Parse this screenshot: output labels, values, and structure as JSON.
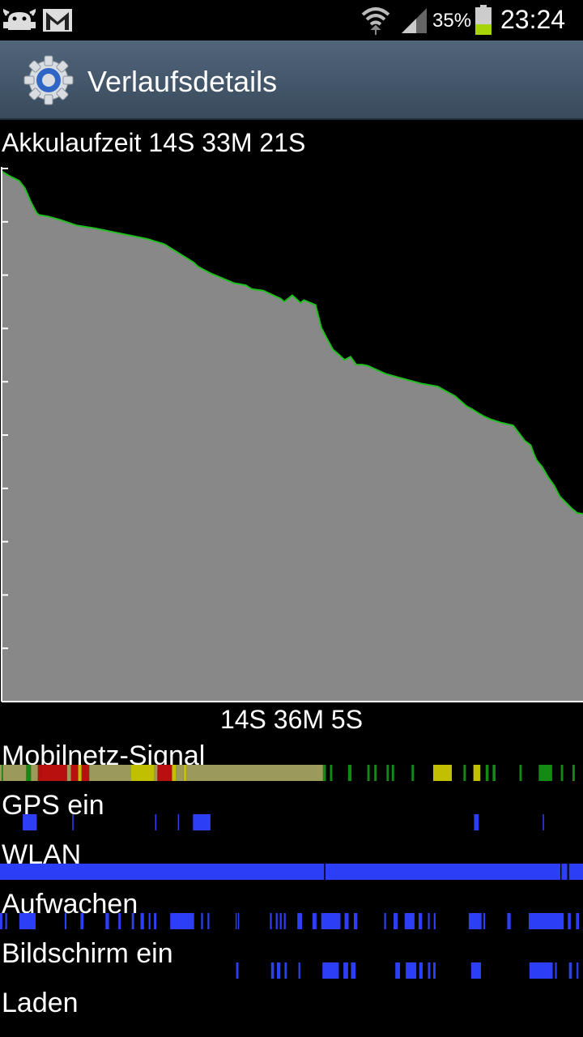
{
  "status_bar": {
    "battery_percent": "35%",
    "time": "23:24",
    "icons": [
      "android-debug-icon",
      "gmail-icon",
      "wifi-icon",
      "signal-icon",
      "battery-icon"
    ]
  },
  "action_bar": {
    "title": "Verlaufsdetails",
    "icon": "settings-gear-icon"
  },
  "summary": {
    "runtime_label": "Akkulaufzeit 14S 33M 21S",
    "duration_label": "14S 36M 5S"
  },
  "colors": {
    "graph_fill": "#888888",
    "graph_line": "#1fbf1f",
    "track_blue": "#2d3ff5",
    "signal_green": "#138a13",
    "signal_olive": "#9c9a5a",
    "signal_red": "#b80f0f",
    "signal_yellow": "#c0c000"
  },
  "chart_data": {
    "type": "area",
    "x": [
      0,
      1.2,
      3,
      4,
      5,
      6,
      6.4,
      8,
      10,
      13,
      16,
      20,
      25,
      28,
      33,
      33.8,
      35,
      36,
      40,
      42,
      43,
      45,
      48,
      48.6,
      50,
      51.4,
      52,
      54,
      55,
      56,
      57,
      58,
      59,
      60,
      61,
      62,
      63,
      64,
      66,
      68,
      70,
      72,
      75,
      78,
      80,
      81,
      82,
      83,
      84,
      86,
      88,
      90,
      91,
      91.5,
      92,
      93,
      94,
      95,
      96,
      97,
      98,
      99,
      100
    ],
    "y": [
      99.5,
      98.7,
      97.7,
      96.3,
      93.8,
      91.7,
      91.3,
      91,
      90.4,
      89.3,
      88.8,
      87.9,
      86.8,
      85.8,
      82.4,
      81.6,
      80.9,
      80.3,
      78.5,
      78.1,
      77.4,
      77.1,
      75.6,
      75,
      76.2,
      74.8,
      75.3,
      74.4,
      70.1,
      68,
      66,
      65.1,
      64.1,
      64.7,
      63.2,
      63.2,
      63,
      62.5,
      61.5,
      60.9,
      60.3,
      59.7,
      59.1,
      57.3,
      55.4,
      54.8,
      54.1,
      53.5,
      53,
      52.3,
      51.8,
      48.9,
      48.1,
      46.6,
      45.3,
      44,
      42.1,
      40.6,
      38.5,
      37.4,
      36.3,
      35.4,
      35.2
    ],
    "ylim": [
      0,
      100
    ],
    "xlabel": "",
    "ylabel": "",
    "grid": false
  },
  "tracks": [
    {
      "label": "Mobilnetz-Signal",
      "type": "signal",
      "segments": [
        {
          "s": 0,
          "e": 0.3,
          "c": "#9c9a5a"
        },
        {
          "s": 0.3,
          "e": 0.5,
          "c": "#138a13"
        },
        {
          "s": 0.5,
          "e": 4.5,
          "c": "#9c9a5a"
        },
        {
          "s": 4.5,
          "e": 5.3,
          "c": "#138a13"
        },
        {
          "s": 5.3,
          "e": 6.5,
          "c": "#9c9a5a"
        },
        {
          "s": 6.5,
          "e": 7,
          "c": "#b80f0f"
        },
        {
          "s": 7,
          "e": 11.5,
          "c": "#b80f0f"
        },
        {
          "s": 11.5,
          "e": 12.2,
          "c": "#9c9a5a"
        },
        {
          "s": 12.2,
          "e": 13.4,
          "c": "#b80f0f"
        },
        {
          "s": 13.4,
          "e": 14,
          "c": "#c0c000"
        },
        {
          "s": 14,
          "e": 15.3,
          "c": "#b80f0f"
        },
        {
          "s": 15.3,
          "e": 22.5,
          "c": "#9c9a5a"
        },
        {
          "s": 22.5,
          "e": 26.5,
          "c": "#c0c000"
        },
        {
          "s": 26.5,
          "e": 27,
          "c": "#9c9a5a"
        },
        {
          "s": 27,
          "e": 29.5,
          "c": "#b80f0f"
        },
        {
          "s": 29.5,
          "e": 30.2,
          "c": "#c0c000"
        },
        {
          "s": 30.2,
          "e": 31.5,
          "c": "#9c9a5a"
        },
        {
          "s": 31.5,
          "e": 32,
          "c": "#c0c000"
        },
        {
          "s": 32,
          "e": 55.4,
          "c": "#9c9a5a"
        },
        {
          "s": 55.4,
          "e": 55.9,
          "c": "#138a13"
        },
        {
          "s": 56.6,
          "e": 57,
          "c": "#138a13"
        },
        {
          "s": 59.7,
          "e": 60.3,
          "c": "#138a13"
        },
        {
          "s": 63,
          "e": 63.4,
          "c": "#138a13"
        },
        {
          "s": 64.2,
          "e": 64.6,
          "c": "#138a13"
        },
        {
          "s": 66.3,
          "e": 66.7,
          "c": "#138a13"
        },
        {
          "s": 67.2,
          "e": 67.6,
          "c": "#138a13"
        },
        {
          "s": 70.6,
          "e": 71,
          "c": "#138a13"
        },
        {
          "s": 74.3,
          "e": 77.5,
          "c": "#c0c000"
        },
        {
          "s": 79.5,
          "e": 79.9,
          "c": "#138a13"
        },
        {
          "s": 81.2,
          "e": 82.4,
          "c": "#c0c000"
        },
        {
          "s": 83.3,
          "e": 83.8,
          "c": "#138a13"
        },
        {
          "s": 84.5,
          "e": 85,
          "c": "#138a13"
        },
        {
          "s": 89.1,
          "e": 89.5,
          "c": "#138a13"
        },
        {
          "s": 92.4,
          "e": 94.7,
          "c": "#138a13"
        },
        {
          "s": 96.2,
          "e": 96.6,
          "c": "#138a13"
        },
        {
          "s": 98.2,
          "e": 98.6,
          "c": "#138a13"
        }
      ]
    },
    {
      "label": "GPS ein",
      "type": "bars",
      "segments": [
        {
          "s": 3.9,
          "e": 6.3
        },
        {
          "s": 12.4,
          "e": 12.6
        },
        {
          "s": 26.6,
          "e": 26.8
        },
        {
          "s": 30.5,
          "e": 30.7
        },
        {
          "s": 33.1,
          "e": 36.1
        },
        {
          "s": 81.3,
          "e": 82.1
        },
        {
          "s": 93.1,
          "e": 93.3
        }
      ]
    },
    {
      "label": "WLAN",
      "type": "bars",
      "segments": [
        {
          "s": 0,
          "e": 55.6
        },
        {
          "s": 55.8,
          "e": 96.1
        },
        {
          "s": 96.3,
          "e": 97.3
        },
        {
          "s": 97.6,
          "e": 100
        }
      ]
    },
    {
      "label": "Aufwachen",
      "type": "bars",
      "segments": [
        {
          "s": 0,
          "e": 0.4
        },
        {
          "s": 0.9,
          "e": 1.2
        },
        {
          "s": 3.3,
          "e": 6.1
        },
        {
          "s": 11.1,
          "e": 11.4
        },
        {
          "s": 13.8,
          "e": 14.3
        },
        {
          "s": 18.1,
          "e": 18.7
        },
        {
          "s": 20.3,
          "e": 20.7
        },
        {
          "s": 22.6,
          "e": 23
        },
        {
          "s": 24.1,
          "e": 24.7
        },
        {
          "s": 25.5,
          "e": 25.8
        },
        {
          "s": 26.4,
          "e": 26.8
        },
        {
          "s": 29.2,
          "e": 33.3
        },
        {
          "s": 34.5,
          "e": 34.8
        },
        {
          "s": 35.6,
          "e": 35.9
        },
        {
          "s": 40.4,
          "e": 40.6
        },
        {
          "s": 40.8,
          "e": 41
        },
        {
          "s": 46.3,
          "e": 46.6
        },
        {
          "s": 47.3,
          "e": 47.6
        },
        {
          "s": 48,
          "e": 48.3
        },
        {
          "s": 48.7,
          "e": 49
        },
        {
          "s": 51,
          "e": 51.8
        },
        {
          "s": 53.6,
          "e": 54.3
        },
        {
          "s": 55.1,
          "e": 58.4
        },
        {
          "s": 59.1,
          "e": 59.8
        },
        {
          "s": 60.7,
          "e": 61.3
        },
        {
          "s": 65.9,
          "e": 66.2
        },
        {
          "s": 67.5,
          "e": 68.2
        },
        {
          "s": 69.4,
          "e": 71.1
        },
        {
          "s": 71.8,
          "e": 72.4
        },
        {
          "s": 73.4,
          "e": 73.7
        },
        {
          "s": 74.4,
          "e": 74.7
        },
        {
          "s": 80.4,
          "e": 82.6
        },
        {
          "s": 82.9,
          "e": 83.2
        },
        {
          "s": 87,
          "e": 87.6
        },
        {
          "s": 90.7,
          "e": 96.7
        },
        {
          "s": 97.4,
          "e": 97.9
        },
        {
          "s": 98.8,
          "e": 99.3
        }
      ]
    },
    {
      "label": "Bildschirm ein",
      "type": "bars",
      "segments": [
        {
          "s": 40.5,
          "e": 40.9
        },
        {
          "s": 46.5,
          "e": 47
        },
        {
          "s": 47.5,
          "e": 48.1
        },
        {
          "s": 48.8,
          "e": 49.2
        },
        {
          "s": 51.2,
          "e": 51.5
        },
        {
          "s": 55.3,
          "e": 58.1
        },
        {
          "s": 58.9,
          "e": 59.7
        },
        {
          "s": 60.2,
          "e": 61
        },
        {
          "s": 67.8,
          "e": 68.6
        },
        {
          "s": 69.6,
          "e": 71.4
        },
        {
          "s": 71.9,
          "e": 72.5
        },
        {
          "s": 73.4,
          "e": 73.8
        },
        {
          "s": 74.3,
          "e": 74.7
        },
        {
          "s": 80.8,
          "e": 82.5
        },
        {
          "s": 90.8,
          "e": 94.8
        },
        {
          "s": 95.2,
          "e": 95.5
        },
        {
          "s": 97.6,
          "e": 98.1
        },
        {
          "s": 98.9,
          "e": 99.2
        }
      ]
    },
    {
      "label": "Laden",
      "type": "bars",
      "segments": []
    }
  ]
}
